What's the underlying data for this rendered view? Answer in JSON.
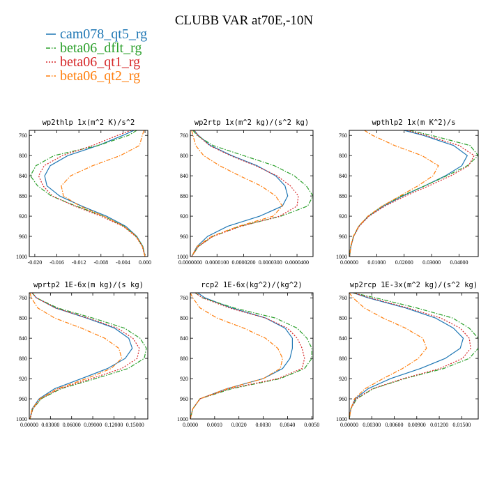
{
  "figure_title": "CLUBB VAR at70E,-10N",
  "legend": [
    {
      "label": "cam078_qt5_rg",
      "color": "#1f77b4",
      "dash": "solid"
    },
    {
      "label": "beta06_dflt_rg",
      "color": "#2ca02c",
      "dash": "dashdot"
    },
    {
      "label": "beta06_qt1_rg",
      "color": "#d62728",
      "dash": "dot"
    },
    {
      "label": "beta06_qt2_rg",
      "color": "#ff7f0e",
      "dash": "dashdot"
    }
  ],
  "chart_data": [
    {
      "type": "line",
      "title": "wp2thlp  1x(m^2 K)/s^2",
      "xlim": [
        -0.021,
        0.0005
      ],
      "ylim": [
        1000,
        750
      ],
      "xticks": [
        -0.02,
        -0.016,
        -0.012,
        -0.008,
        -0.004,
        0.0
      ],
      "xtick_labels": [
        "-0.020",
        "-0.016",
        "-0.012",
        "-0.008",
        "-0.004",
        "0.000"
      ],
      "yticks": [
        760,
        800,
        840,
        880,
        920,
        960,
        1000
      ],
      "y": [
        750,
        760,
        780,
        800,
        820,
        840,
        860,
        880,
        900,
        920,
        940,
        960,
        980,
        1000
      ],
      "series": [
        {
          "name": "cam078_qt5_rg",
          "x": [
            -0.002,
            -0.004,
            -0.0085,
            -0.014,
            -0.0172,
            -0.0182,
            -0.0178,
            -0.0155,
            -0.0115,
            -0.007,
            -0.0035,
            -0.0015,
            -0.0004,
            0.0
          ]
        },
        {
          "name": "beta06_dflt_rg",
          "x": [
            -0.0015,
            -0.003,
            -0.0085,
            -0.0165,
            -0.0198,
            -0.0208,
            -0.0195,
            -0.017,
            -0.0125,
            -0.0075,
            -0.0038,
            -0.0016,
            -0.0004,
            0.0
          ]
        },
        {
          "name": "beta06_qt1_rg",
          "x": [
            -0.0025,
            -0.005,
            -0.0095,
            -0.015,
            -0.0183,
            -0.0193,
            -0.0185,
            -0.0168,
            -0.0128,
            -0.008,
            -0.004,
            -0.0017,
            -0.0005,
            0.0
          ]
        },
        {
          "name": "beta06_qt2_rg",
          "x": [
            -0.0002,
            -0.0005,
            -0.001,
            -0.0045,
            -0.0095,
            -0.0135,
            -0.0152,
            -0.0148,
            -0.0118,
            -0.0075,
            -0.0038,
            -0.0016,
            -0.0005,
            0.0
          ]
        }
      ]
    },
    {
      "type": "line",
      "title": "wp2rtp  1x(m^2 kg)/(s^2 kg)",
      "xlim": [
        0.0,
        4.6e-05
      ],
      "ylim": [
        1000,
        750
      ],
      "xticks": [
        0.0,
        1e-05,
        2e-05,
        3e-05,
        4e-05
      ],
      "xtick_labels": [
        "0.0000000",
        "0.0000100",
        "0.0000200",
        "0.0000300",
        "0.0000400"
      ],
      "yticks": [
        760,
        800,
        840,
        880,
        920,
        960,
        1000
      ],
      "y": [
        750,
        760,
        780,
        800,
        820,
        840,
        860,
        880,
        900,
        920,
        940,
        960,
        980,
        1000
      ],
      "series": [
        {
          "name": "cam078_qt5_rg",
          "x": [
            1.5e-06,
            3e-06,
            7.5e-06,
            1.55e-05,
            2.5e-05,
            3.2e-05,
            3.55e-05,
            3.65e-05,
            3.45e-05,
            2.6e-05,
            1.4e-05,
            6.5e-06,
            2.5e-06,
            5e-07
          ]
        },
        {
          "name": "beta06_dflt_rg",
          "x": [
            1e-06,
            2.5e-06,
            8.5e-06,
            2e-05,
            3.15e-05,
            3.9e-05,
            4.35e-05,
            4.6e-05,
            4.4e-05,
            3.4e-05,
            1.85e-05,
            8.5e-06,
            3e-06,
            5e-07
          ]
        },
        {
          "name": "beta06_qt1_rg",
          "x": [
            1.5e-06,
            2.8e-06,
            7.2e-06,
            1.5e-05,
            2.45e-05,
            3.25e-05,
            3.75e-05,
            4.05e-05,
            4e-05,
            3.35e-05,
            1.9e-05,
            8.5e-06,
            3e-06,
            5e-07
          ]
        },
        {
          "name": "beta06_qt2_rg",
          "x": [
            5e-07,
            1e-06,
            2e-06,
            5e-06,
            1.1e-05,
            1.85e-05,
            2.65e-05,
            3.2e-05,
            3.45e-05,
            3.1e-05,
            1.8e-05,
            8e-06,
            2.5e-06,
            5e-07
          ]
        }
      ]
    },
    {
      "type": "line",
      "title": "wpthlp2  1x(m K^2)/s",
      "xlim": [
        0.0,
        0.047
      ],
      "ylim": [
        1000,
        750
      ],
      "xticks": [
        0.0,
        0.01,
        0.02,
        0.03,
        0.04
      ],
      "xtick_labels": [
        "0.00000",
        "0.01000",
        "0.02000",
        "0.03000",
        "0.04000"
      ],
      "yticks": [
        760,
        800,
        840,
        880,
        920,
        960,
        1000
      ],
      "y": [
        750,
        760,
        780,
        800,
        820,
        840,
        860,
        880,
        900,
        920,
        940,
        960,
        980,
        1000
      ],
      "series": [
        {
          "name": "cam078_qt5_rg",
          "x": [
            0.02,
            0.027,
            0.038,
            0.043,
            0.041,
            0.035,
            0.0275,
            0.0195,
            0.0125,
            0.007,
            0.0035,
            0.0016,
            0.0006,
            0.0001
          ]
        },
        {
          "name": "beta06_dflt_rg",
          "x": [
            0.022,
            0.03,
            0.044,
            0.047,
            0.043,
            0.0355,
            0.0275,
            0.019,
            0.012,
            0.0068,
            0.0034,
            0.0015,
            0.0005,
            0.0001
          ]
        },
        {
          "name": "beta06_qt1_rg",
          "x": [
            0.021,
            0.028,
            0.04,
            0.0455,
            0.0435,
            0.037,
            0.029,
            0.0205,
            0.013,
            0.0072,
            0.0036,
            0.0016,
            0.0006,
            0.0001
          ]
        },
        {
          "name": "beta06_qt2_rg",
          "x": [
            0.0055,
            0.0085,
            0.0165,
            0.0265,
            0.0325,
            0.0305,
            0.025,
            0.0185,
            0.012,
            0.0068,
            0.0034,
            0.0015,
            0.0005,
            0.0001
          ]
        }
      ]
    },
    {
      "type": "line",
      "title": "wprtp2  1E-6x(m kg)/(s kg)",
      "xlim": [
        0.0,
        0.168
      ],
      "ylim": [
        1000,
        750
      ],
      "xticks": [
        0.0,
        0.03,
        0.06,
        0.09,
        0.12,
        0.15
      ],
      "xtick_labels": [
        "0.00000",
        "0.03000",
        "0.06000",
        "0.09000",
        "0.12000",
        "0.15000"
      ],
      "yticks": [
        760,
        800,
        840,
        880,
        920,
        960,
        1000
      ],
      "y": [
        750,
        760,
        780,
        800,
        820,
        840,
        860,
        880,
        900,
        920,
        940,
        960,
        980,
        1000
      ],
      "series": [
        {
          "name": "cam078_qt5_rg",
          "x": [
            0.004,
            0.01,
            0.037,
            0.081,
            0.121,
            0.141,
            0.146,
            0.136,
            0.111,
            0.074,
            0.036,
            0.014,
            0.004,
            0.001
          ]
        },
        {
          "name": "beta06_dflt_rg",
          "x": [
            0.004,
            0.01,
            0.04,
            0.09,
            0.135,
            0.157,
            0.166,
            0.163,
            0.14,
            0.094,
            0.045,
            0.017,
            0.005,
            0.001
          ]
        },
        {
          "name": "beta06_qt1_rg",
          "x": [
            0.004,
            0.01,
            0.037,
            0.083,
            0.125,
            0.147,
            0.156,
            0.153,
            0.131,
            0.088,
            0.043,
            0.016,
            0.005,
            0.001
          ]
        },
        {
          "name": "beta06_qt2_rg",
          "x": [
            0.001,
            0.003,
            0.012,
            0.036,
            0.074,
            0.107,
            0.127,
            0.131,
            0.116,
            0.081,
            0.04,
            0.015,
            0.004,
            0.001
          ]
        }
      ]
    },
    {
      "type": "line",
      "title": "rcp2  1E-6x(kg^2)/(kg^2)",
      "xlim": [
        0.0,
        0.00505
      ],
      "ylim": [
        1000,
        750
      ],
      "xticks": [
        0.0,
        0.001,
        0.002,
        0.003,
        0.004,
        0.005
      ],
      "xtick_labels": [
        "0.0000",
        "0.0010",
        "0.0020",
        "0.0030",
        "0.0040",
        "0.0050"
      ],
      "yticks": [
        760,
        800,
        840,
        880,
        920,
        960,
        1000
      ],
      "y": [
        750,
        760,
        780,
        800,
        820,
        840,
        860,
        880,
        900,
        920,
        940,
        960,
        980,
        1000
      ],
      "series": [
        {
          "name": "cam078_qt5_rg",
          "x": [
            0.0003,
            0.0006,
            0.0017,
            0.0031,
            0.0039,
            0.0042,
            0.0042,
            0.0041,
            0.0038,
            0.003,
            0.0015,
            0.0004,
            0.0001,
            0.0
          ]
        },
        {
          "name": "beta06_dflt_rg",
          "x": [
            0.0002,
            0.0005,
            0.0018,
            0.0035,
            0.0044,
            0.0048,
            0.005,
            0.005,
            0.0047,
            0.0037,
            0.0017,
            0.0004,
            0.0001,
            0.0
          ]
        },
        {
          "name": "beta06_qt1_rg",
          "x": [
            0.0002,
            0.0005,
            0.0016,
            0.0031,
            0.004,
            0.0044,
            0.0046,
            0.0047,
            0.0046,
            0.0036,
            0.0016,
            0.0004,
            0.0001,
            0.0
          ]
        },
        {
          "name": "beta06_qt2_rg",
          "x": [
            0.0,
            0.0001,
            0.0004,
            0.0011,
            0.0022,
            0.0031,
            0.0036,
            0.0038,
            0.0037,
            0.003,
            0.0015,
            0.0004,
            0.0001,
            0.0
          ]
        }
      ]
    },
    {
      "type": "line",
      "title": "wp2rcp  1E-3x(m^2 kg)/(s^2 kg)",
      "xlim": [
        0.0,
        0.0172
      ],
      "ylim": [
        1000,
        750
      ],
      "xticks": [
        0.0,
        0.003,
        0.006,
        0.009,
        0.012,
        0.015
      ],
      "xtick_labels": [
        "0.00000",
        "0.00300",
        "0.00600",
        "0.00900",
        "0.01200",
        "0.01500"
      ],
      "yticks": [
        760,
        800,
        840,
        880,
        920,
        960,
        1000
      ],
      "y": [
        750,
        760,
        780,
        800,
        820,
        840,
        860,
        880,
        900,
        920,
        940,
        960,
        980,
        1000
      ],
      "series": [
        {
          "name": "cam078_qt5_rg",
          "x": [
            0.0005,
            0.0025,
            0.0075,
            0.0115,
            0.0139,
            0.0152,
            0.0148,
            0.0128,
            0.0095,
            0.0055,
            0.0025,
            0.0008,
            0.0002,
            0.0
          ]
        },
        {
          "name": "beta06_dflt_rg",
          "x": [
            0.0005,
            0.0035,
            0.009,
            0.0138,
            0.016,
            0.0172,
            0.0172,
            0.016,
            0.0126,
            0.0074,
            0.0032,
            0.001,
            0.0002,
            0.0
          ]
        },
        {
          "name": "beta06_qt1_rg",
          "x": [
            0.0005,
            0.0028,
            0.0078,
            0.0122,
            0.0148,
            0.016,
            0.0162,
            0.0151,
            0.0121,
            0.0072,
            0.0031,
            0.0009,
            0.0002,
            0.0
          ]
        },
        {
          "name": "beta06_qt2_rg",
          "x": [
            0.0,
            0.0005,
            0.002,
            0.0045,
            0.0075,
            0.0098,
            0.0103,
            0.0092,
            0.0071,
            0.0045,
            0.0021,
            0.0007,
            0.0002,
            0.0
          ]
        }
      ]
    }
  ]
}
